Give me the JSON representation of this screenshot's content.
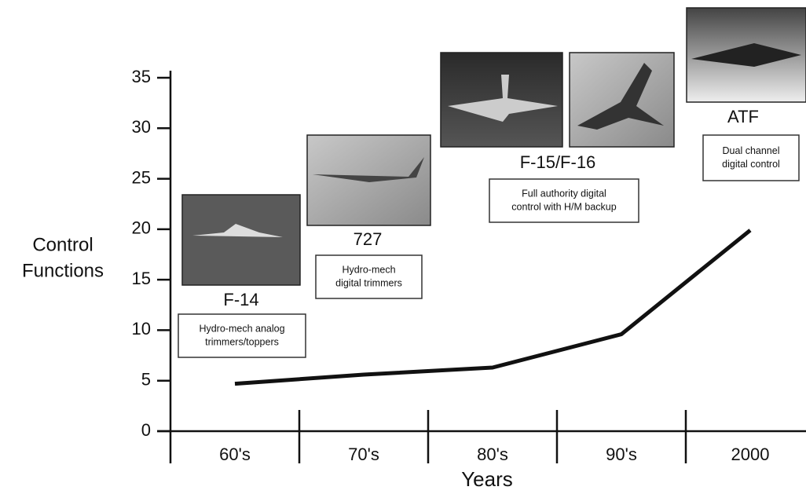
{
  "chart_data": {
    "type": "line",
    "ylabel": [
      "Control",
      "Functions"
    ],
    "xlabel": "Years",
    "categories": [
      "60's",
      "70's",
      "80's",
      "90's",
      "2000"
    ],
    "values": [
      4.7,
      5.6,
      6.3,
      9.6,
      19.9
    ],
    "color": "#111111",
    "ylim": [
      0,
      35
    ],
    "yticks": [
      0,
      5,
      10,
      15,
      20,
      25,
      30,
      35
    ],
    "annotations": [
      {
        "label": "F-14",
        "text": [
          "Hydro-mech analog",
          "trimmers/toppers"
        ]
      },
      {
        "label": "727",
        "text": [
          "Hydro-mech",
          "digital trimmers"
        ]
      },
      {
        "label": "F-15/F-16",
        "text": [
          "Full authority digital",
          "control with H/M backup"
        ]
      },
      {
        "label": "ATF",
        "text": [
          "Dual channel",
          "digital control"
        ]
      }
    ]
  }
}
